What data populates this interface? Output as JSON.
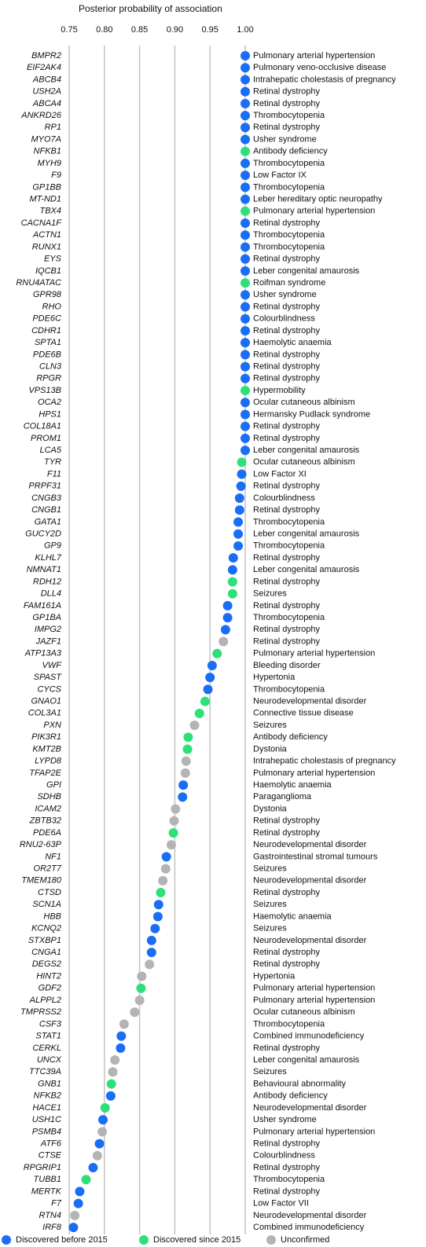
{
  "chart_data": {
    "type": "dot",
    "title": "Posterior probability of association",
    "xlim": [
      0.75,
      1.0
    ],
    "xticks": [
      0.75,
      {
        "value": 0.8,
        "label": "0.80"
      },
      0.85,
      {
        "value": 0.9,
        "label": "0.90"
      },
      0.95,
      {
        "value": 1.0,
        "label": "1.00"
      }
    ],
    "grid": true,
    "legend": "bottom",
    "categories": [
      "BMPR2",
      "EIF2AK4",
      "ABCB4",
      "USH2A",
      "ABCA4",
      "ANKRD26",
      "RP1",
      "MYO7A",
      "NFKB1",
      "MYH9",
      "F9",
      "GP1BB",
      "MT-ND1",
      "TBX4",
      "CACNA1F",
      "ACTN1",
      "RUNX1",
      "EYS",
      "IQCB1",
      "RNU4ATAC",
      "GPR98",
      "RHO",
      "PDE6C",
      "CDHR1",
      "SPTA1",
      "PDE6B",
      "CLN3",
      "RPGR",
      "VPS13B",
      "OCA2",
      "HPS1",
      "COL18A1",
      "PROM1",
      "LCA5",
      "TYR",
      "F11",
      "PRPF31",
      "CNGB3",
      "CNGB1",
      "GATA1",
      "GUCY2D",
      "GP9",
      "KLHL7",
      "NMNAT1",
      "RDH12",
      "DLL4",
      "FAM161A",
      "GP1BA",
      "IMPG2",
      "JAZF1",
      "ATP13A3",
      "VWF",
      "SPAST",
      "CYCS",
      "GNAO1",
      "COL3A1",
      "PXN",
      "PIK3R1",
      "KMT2B",
      "LYPD8",
      "TFAP2E",
      "GPI",
      "SDHB",
      "ICAM2",
      "ZBTB32",
      "PDE6A",
      "RNU2-63P",
      "NF1",
      "OR2T7",
      "TMEM180",
      "CTSD",
      "SCN1A",
      "HBB",
      "KCNQ2",
      "STXBP1",
      "CNGA1",
      "DEGS2",
      "HINT2",
      "GDF2",
      "ALPPL2",
      "TMPRSS2",
      "CSF3",
      "STAT1",
      "CERKL",
      "UNCX",
      "TTC39A",
      "GNB1",
      "NFKB2",
      "HACE1",
      "USH1C",
      "PSMB4",
      "ATF6",
      "CTSE",
      "RPGRIP1",
      "TUBB1",
      "MERTK",
      "F7",
      "RTN4",
      "IRF8"
    ],
    "diseases": [
      "Pulmonary arterial hypertension",
      "Pulmonary veno-occlusive disease",
      "Intrahepatic cholestasis of pregnancy",
      "Retinal dystrophy",
      "Retinal dystrophy",
      "Thrombocytopenia",
      "Retinal dystrophy",
      "Usher syndrome",
      "Antibody deficiency",
      "Thrombocytopenia",
      "Low Factor IX",
      "Thrombocytopenia",
      "Leber hereditary optic neuropathy",
      "Pulmonary arterial hypertension",
      "Retinal dystrophy",
      "Thrombocytopenia",
      "Thrombocytopenia",
      "Retinal dystrophy",
      "Leber congenital amaurosis",
      "Roifman syndrome",
      "Usher syndrome",
      "Retinal dystrophy",
      "Colourblindness",
      "Retinal dystrophy",
      "Haemolytic anaemia",
      "Retinal dystrophy",
      "Retinal dystrophy",
      "Retinal dystrophy",
      "Hypermobility",
      "Ocular cutaneous albinism",
      "Hermansky Pudlack syndrome",
      "Retinal dystrophy",
      "Retinal dystrophy",
      "Leber congenital amaurosis",
      "Ocular cutaneous albinism",
      "Low Factor XI",
      "Retinal dystrophy",
      "Colourblindness",
      "Retinal dystrophy",
      "Thrombocytopenia",
      "Leber congenital amaurosis",
      "Thrombocytopenia",
      "Retinal dystrophy",
      "Leber congenital amaurosis",
      "Retinal dystrophy",
      "Seizures",
      "Retinal dystrophy",
      "Thrombocytopenia",
      "Retinal dystrophy",
      "Retinal dystrophy",
      "Pulmonary arterial hypertension",
      "Bleeding disorder",
      "Hypertonia",
      "Thrombocytopenia",
      "Neurodevelopmental disorder",
      "Connective tissue disease",
      "Seizures",
      "Antibody deficiency",
      "Dystonia",
      "Intrahepatic cholestasis of pregnancy",
      "Pulmonary arterial hypertension",
      "Haemolytic anaemia",
      "Paraganglioma",
      "Dystonia",
      "Retinal dystrophy",
      "Retinal dystrophy",
      "Neurodevelopmental disorder",
      "Gastrointestinal stromal tumours",
      "Seizures",
      "Neurodevelopmental disorder",
      "Retinal dystrophy",
      "Seizures",
      "Haemolytic anaemia",
      "Seizures",
      "Neurodevelopmental disorder",
      "Retinal dystrophy",
      "Retinal dystrophy",
      "Hypertonia",
      "Pulmonary arterial hypertension",
      "Pulmonary arterial hypertension",
      "Ocular cutaneous albinism",
      "Thrombocytopenia",
      "Combined immunodeficiency",
      "Retinal dystrophy",
      "Leber congenital amaurosis",
      "Seizures",
      "Behavioural abnormality",
      "Antibody deficiency",
      "Neurodevelopmental disorder",
      "Usher syndrome",
      "Pulmonary arterial hypertension",
      "Retinal dystrophy",
      "Colourblindness",
      "Retinal dystrophy",
      "Thrombocytopenia",
      "Retinal dystrophy",
      "Low Factor VII",
      "Neurodevelopmental disorder",
      "Combined immunodeficiency"
    ],
    "series": [
      {
        "name": "Discovered before 2015",
        "color": "#1a6ef5",
        "values": [
          1,
          1,
          1,
          1,
          1,
          1,
          1,
          1,
          null,
          1,
          1,
          1,
          1,
          null,
          1,
          1,
          1,
          1,
          1,
          null,
          1,
          1,
          1,
          1,
          1,
          1,
          1,
          1,
          null,
          1,
          1,
          1,
          1,
          1,
          null,
          0.995,
          0.994,
          0.992,
          0.992,
          0.99,
          0.99,
          0.99,
          0.983,
          0.982,
          null,
          null,
          0.975,
          0.975,
          0.972,
          null,
          null,
          0.953,
          0.95,
          0.947,
          null,
          null,
          null,
          null,
          null,
          null,
          null,
          0.912,
          0.911,
          null,
          null,
          null,
          null,
          0.888,
          null,
          null,
          null,
          0.877,
          0.876,
          0.872,
          0.867,
          0.867,
          null,
          null,
          null,
          null,
          null,
          null,
          0.824,
          0.823,
          null,
          null,
          null,
          0.809,
          null,
          0.798,
          null,
          0.793,
          null,
          0.784,
          null,
          0.765,
          0.763,
          null,
          0.756
        ]
      },
      {
        "name": "Discovered since 2015",
        "color": "#2ee07a",
        "values": [
          null,
          null,
          null,
          null,
          null,
          null,
          null,
          null,
          1,
          null,
          null,
          null,
          null,
          1,
          null,
          null,
          null,
          null,
          null,
          1,
          null,
          null,
          null,
          null,
          null,
          null,
          null,
          null,
          1,
          null,
          null,
          null,
          null,
          null,
          0.995,
          null,
          null,
          null,
          null,
          null,
          null,
          null,
          null,
          null,
          0.982,
          0.982,
          null,
          null,
          null,
          null,
          0.96,
          null,
          null,
          null,
          0.943,
          0.935,
          null,
          0.919,
          0.918,
          null,
          null,
          null,
          null,
          null,
          null,
          0.898,
          null,
          null,
          null,
          null,
          0.88,
          null,
          null,
          null,
          null,
          null,
          null,
          null,
          0.852,
          null,
          null,
          null,
          null,
          null,
          null,
          null,
          0.81,
          null,
          0.801,
          null,
          null,
          null,
          null,
          null,
          0.774,
          null,
          null,
          null,
          null
        ]
      },
      {
        "name": "Unconfirmed",
        "color": "#b4b4b4",
        "values": [
          null,
          null,
          null,
          null,
          null,
          null,
          null,
          null,
          null,
          null,
          null,
          null,
          null,
          null,
          null,
          null,
          null,
          null,
          null,
          null,
          null,
          null,
          null,
          null,
          null,
          null,
          null,
          null,
          null,
          null,
          null,
          null,
          null,
          null,
          null,
          null,
          null,
          null,
          null,
          null,
          null,
          null,
          null,
          null,
          null,
          null,
          null,
          null,
          null,
          0.969,
          null,
          null,
          null,
          null,
          null,
          null,
          0.928,
          null,
          null,
          0.916,
          0.915,
          null,
          null,
          0.901,
          0.899,
          null,
          0.895,
          null,
          0.887,
          0.883,
          null,
          null,
          null,
          null,
          null,
          null,
          0.864,
          0.853,
          null,
          0.85,
          0.843,
          0.828,
          null,
          null,
          0.815,
          0.812,
          null,
          null,
          null,
          null,
          0.797,
          null,
          0.79,
          null,
          null,
          null,
          null,
          0.758,
          null
        ]
      }
    ]
  }
}
